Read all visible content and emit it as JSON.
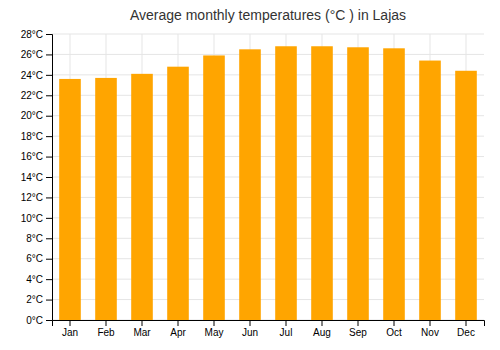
{
  "chart_data": {
    "type": "bar",
    "title": "Average monthly temperatures (°C ) in Lajas",
    "categories": [
      "Jan",
      "Feb",
      "Mar",
      "Apr",
      "May",
      "Jun",
      "Jul",
      "Aug",
      "Sep",
      "Oct",
      "Nov",
      "Dec"
    ],
    "values": [
      23.6,
      23.7,
      24.1,
      24.8,
      25.9,
      26.5,
      26.8,
      26.8,
      26.7,
      26.6,
      25.4,
      24.4
    ],
    "color": "#FFA500",
    "ylim": [
      0,
      28
    ],
    "yticks": [
      {
        "value": 0,
        "label": "0°C"
      },
      {
        "value": 2,
        "label": "2°C"
      },
      {
        "value": 4,
        "label": "4°C"
      },
      {
        "value": 6,
        "label": "6°C"
      },
      {
        "value": 8,
        "label": "8°C"
      },
      {
        "value": 10,
        "label": "10°C"
      },
      {
        "value": 12,
        "label": "12°C"
      },
      {
        "value": 14,
        "label": "14°C"
      },
      {
        "value": 16,
        "label": "16°C"
      },
      {
        "value": 18,
        "label": "18°C"
      },
      {
        "value": 20,
        "label": "20°C"
      },
      {
        "value": 22,
        "label": "22°C"
      },
      {
        "value": 24,
        "label": "24°C"
      },
      {
        "value": 26,
        "label": "26°C"
      },
      {
        "value": 28,
        "label": "28°C"
      }
    ],
    "grid": true
  }
}
